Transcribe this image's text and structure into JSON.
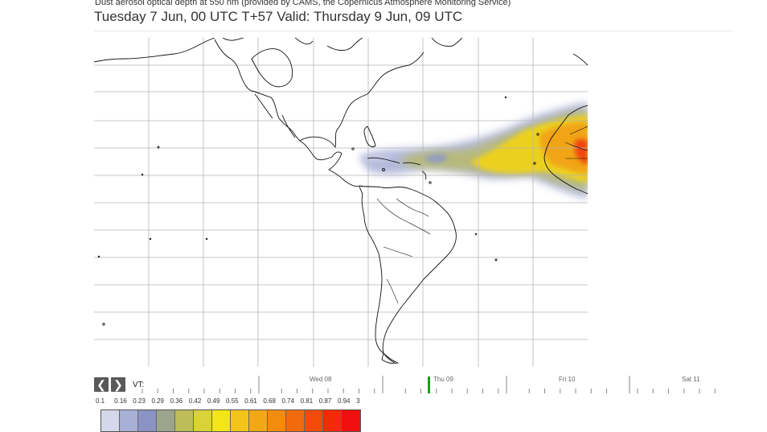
{
  "header": {
    "subtitle": "Dust aerosol optical depth at 550 nm (provided by CAMS, the Copernicus Atmosphere Monitoring Service)",
    "title": "Tuesday 7 Jun, 00 UTC T+57 Valid: Thursday 9 Jun, 09 UTC"
  },
  "timeline": {
    "prev_icon": "chevron-left-icon",
    "next_icon": "chevron-right-icon",
    "prev_glyph": "❮",
    "next_glyph": "❯",
    "vt_label": "VT:",
    "days": [
      "Wed 08",
      "Thu 09",
      "Fri 10",
      "Sat 11"
    ],
    "current_marker_color": "#1a9e1a"
  },
  "legend": {
    "values": [
      "0.1",
      "0.16",
      "0.23",
      "0.29",
      "0.36",
      "0.42",
      "0.49",
      "0.55",
      "0.61",
      "0.68",
      "0.74",
      "0.81",
      "0.87",
      "0.94",
      "3"
    ],
    "colors": [
      "#d4d8ea",
      "#a9b0d6",
      "#8a93c4",
      "#9aa58b",
      "#bdbd5a",
      "#d9d238",
      "#f4e616",
      "#f3c51a",
      "#f2a815",
      "#f28b10",
      "#f26a0c",
      "#f24a08",
      "#f22a06",
      "#f01010"
    ]
  },
  "map": {
    "graticule_color": "#b5b5b5",
    "coast_color": "#111111"
  }
}
